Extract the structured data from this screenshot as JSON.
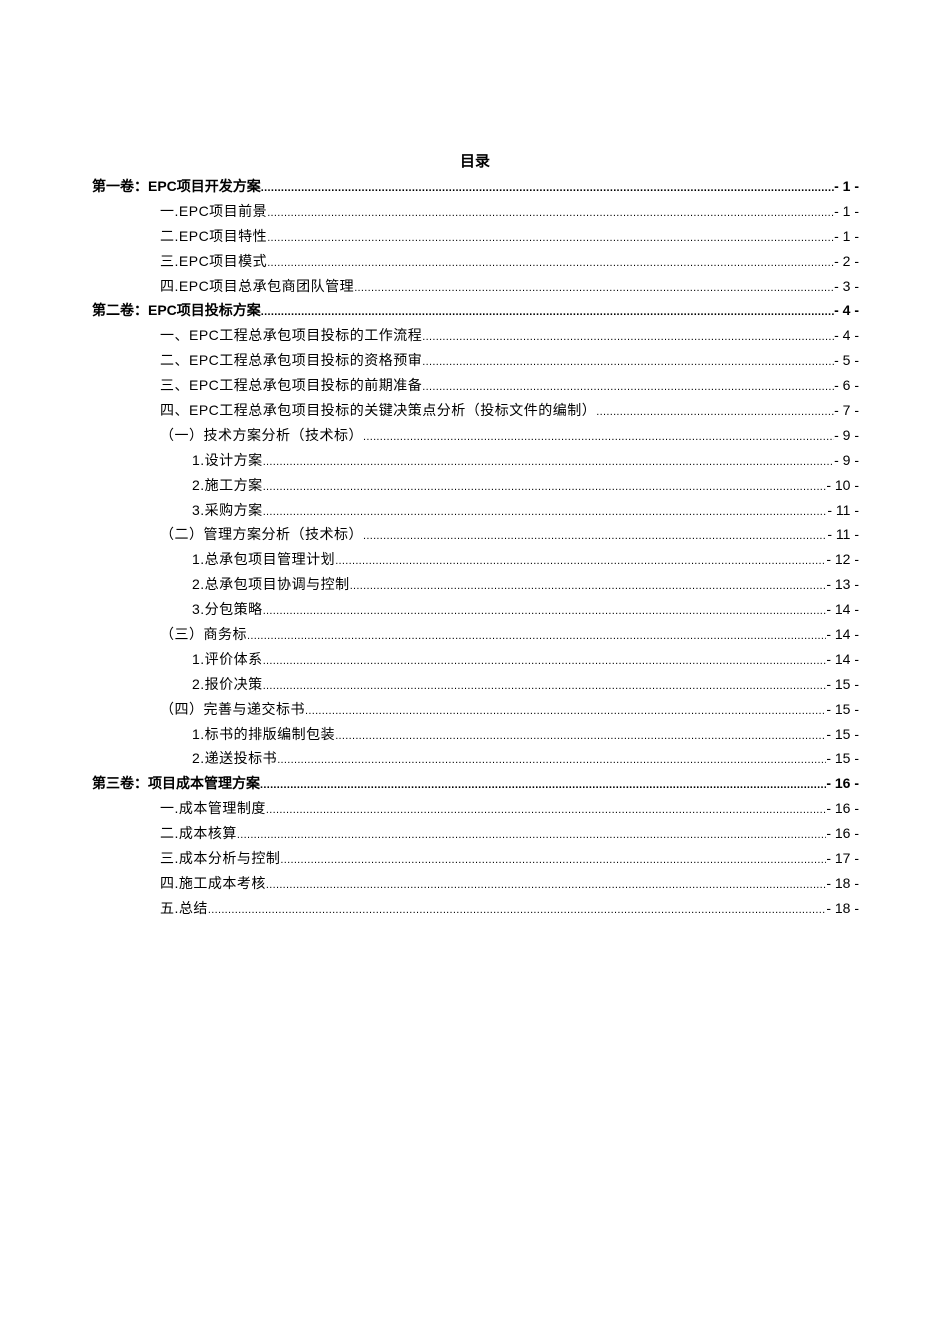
{
  "title": "目录",
  "entries": [
    {
      "level": 0,
      "text": "第一卷：EPC项目开发方案",
      "page": "- 1 -"
    },
    {
      "level": 1,
      "text": "一.EPC项目前景",
      "page": "- 1 -"
    },
    {
      "level": 1,
      "text": "二.EPC项目特性",
      "page": "- 1 -"
    },
    {
      "level": 1,
      "text": "三.EPC项目模式",
      "page": "- 2 -"
    },
    {
      "level": 1,
      "text": "四.EPC项目总承包商团队管理",
      "page": "- 3 -"
    },
    {
      "level": 0,
      "text": "第二卷：EPC项目投标方案",
      "page": "- 4 -"
    },
    {
      "level": 1,
      "text": "一、EPC工程总承包项目投标的工作流程",
      "page": "- 4 -"
    },
    {
      "level": 1,
      "text": "二、EPC工程总承包项目投标的资格预审",
      "page": "- 5 -"
    },
    {
      "level": 1,
      "text": "三、EPC工程总承包项目投标的前期准备",
      "page": "- 6 -"
    },
    {
      "level": 1,
      "text": "四、EPC工程总承包项目投标的关键决策点分析（投标文件的编制）",
      "page": "- 7 -"
    },
    {
      "level": 2,
      "text": "（一）技术方案分析（技术标）",
      "page": "- 9 -"
    },
    {
      "level": 3,
      "text": "1.设计方案",
      "page": "- 9 -"
    },
    {
      "level": 3,
      "text": "2.施工方案",
      "page": "- 10 -"
    },
    {
      "level": 3,
      "text": "3.采购方案",
      "page": "- 11 -"
    },
    {
      "level": 2,
      "text": "（二）管理方案分析（技术标）",
      "page": "- 11 -"
    },
    {
      "level": 3,
      "text": "1.总承包项目管理计划",
      "page": "- 12 -"
    },
    {
      "level": 3,
      "text": "2.总承包项目协调与控制",
      "page": "- 13 -"
    },
    {
      "level": 3,
      "text": "3.分包策略",
      "page": "- 14 -"
    },
    {
      "level": 2,
      "text": "（三）商务标",
      "page": "- 14 -"
    },
    {
      "level": 3,
      "text": "1.评价体系",
      "page": "- 14 -"
    },
    {
      "level": 3,
      "text": "2.报价决策",
      "page": "- 15 -"
    },
    {
      "level": 2,
      "text": "（四）完善与递交标书",
      "page": "- 15 -"
    },
    {
      "level": 3,
      "text": "1.标书的排版编制包装",
      "page": "- 15 -"
    },
    {
      "level": 3,
      "text": "2.递送投标书",
      "page": "- 15 -"
    },
    {
      "level": 0,
      "text": "第三卷：项目成本管理方案",
      "page": "- 16 -"
    },
    {
      "level": 1,
      "text": "一.成本管理制度",
      "page": "- 16 -"
    },
    {
      "level": 1,
      "text": "二.成本核算",
      "page": "- 16 -"
    },
    {
      "level": 1,
      "text": "三.成本分析与控制",
      "page": "- 17 -"
    },
    {
      "level": 1,
      "text": "四.施工成本考核",
      "page": "- 18 -"
    },
    {
      "level": 1,
      "text": "五.总结",
      "page": "- 18 -"
    }
  ]
}
